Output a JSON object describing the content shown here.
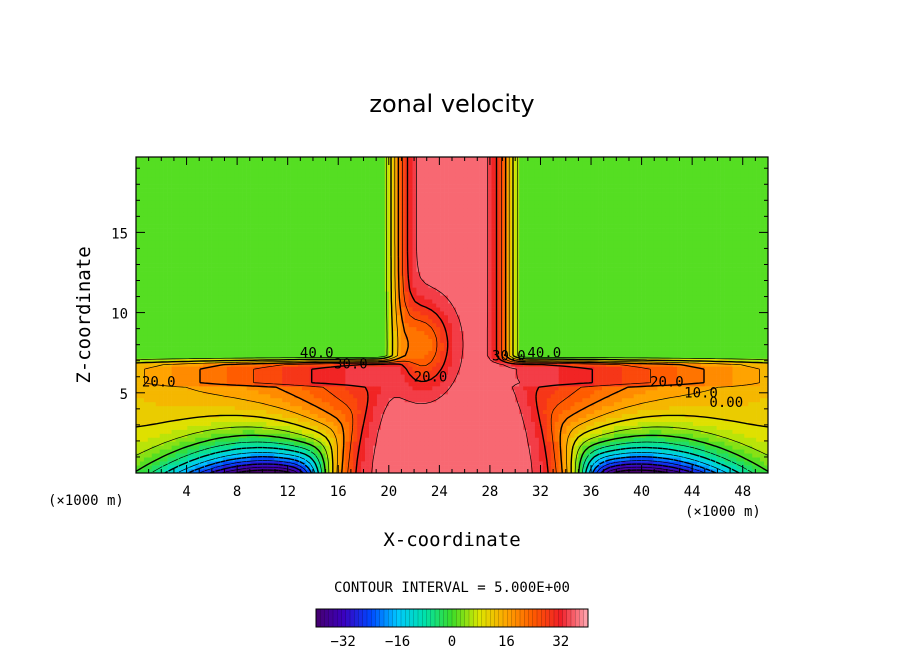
{
  "chart_data": {
    "type": "contour",
    "title": "zonal velocity",
    "xlabel": "X-coordinate",
    "ylabel": "Z-coordinate",
    "x_unit_left": "(×1000 m)",
    "x_unit_right": "(×1000 m)",
    "xlim": [
      0,
      50
    ],
    "ylim": [
      0,
      19.7
    ],
    "x_ticks": [
      4,
      8,
      12,
      16,
      20,
      24,
      28,
      32,
      36,
      40,
      44,
      48
    ],
    "x_tick_labels": [
      "4",
      "8",
      "12",
      "16",
      "20",
      "24",
      "28",
      "32",
      "36",
      "40",
      "44",
      "48"
    ],
    "y_ticks": [
      5,
      10,
      15
    ],
    "y_tick_labels": [
      "5",
      "10",
      "15"
    ],
    "contour_interval_text": "CONTOUR INTERVAL = 5.000E+00",
    "contour_labels": [
      {
        "text": "40.0",
        "x": 14.3,
        "y": 7.2
      },
      {
        "text": "30.0",
        "x": 17.0,
        "y": 6.5
      },
      {
        "text": "20.0",
        "x": 1.8,
        "y": 5.4
      },
      {
        "text": "20.0",
        "x": 23.3,
        "y": 5.7
      },
      {
        "text": "30.0",
        "x": 29.5,
        "y": 7.0
      },
      {
        "text": "40.0",
        "x": 32.3,
        "y": 7.2
      },
      {
        "text": "20.0",
        "x": 42.0,
        "y": 5.4
      },
      {
        "text": "10.0",
        "x": 44.7,
        "y": 4.7
      },
      {
        "text": "0.00",
        "x": 46.7,
        "y": 4.1
      }
    ],
    "colorbar": {
      "range": [
        -40,
        40
      ],
      "ticks": [
        -32,
        -16,
        0,
        16,
        32
      ],
      "tick_labels": [
        "−32",
        "−16",
        "0",
        "16",
        "32"
      ]
    }
  }
}
